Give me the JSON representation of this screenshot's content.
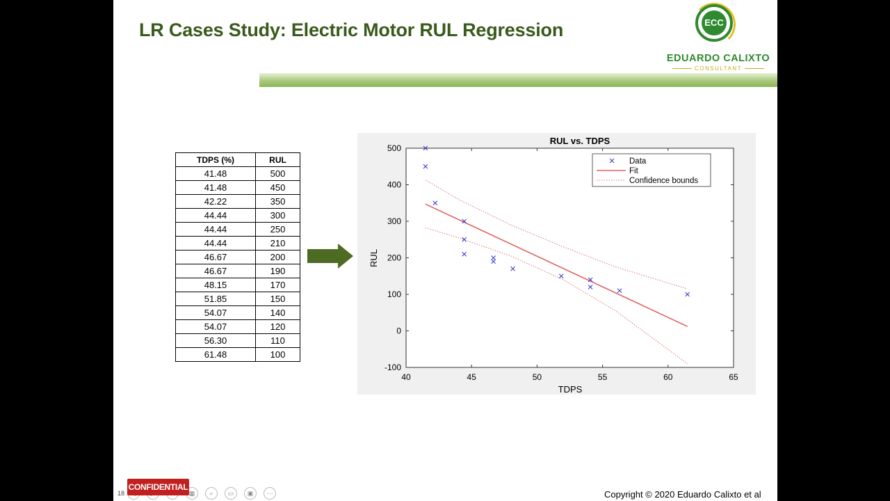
{
  "slide": {
    "title": "LR Cases Study: Electric Motor RUL Regression",
    "logo": {
      "initials": "ECC",
      "name": "EDUARDO CALIXTO",
      "subtitle": "CONSULTANT"
    },
    "confidential_label": "CONFIDENTIAL",
    "page_number": "18",
    "copyright": "Copyright © 2020 Eduardo Calixto et al",
    "colors": {
      "title": "#3a5a1c",
      "arrow": "#4e6b24",
      "brand": "#2f8a2f",
      "confidential": "#c21f1f"
    },
    "controls": [
      "prev-icon",
      "next-icon",
      "pen-icon",
      "slides-icon",
      "zoom-icon",
      "subtitles-icon",
      "video-icon",
      "more-icon"
    ]
  },
  "table": {
    "headers": [
      "TDPS (%)",
      "RUL"
    ],
    "rows": [
      [
        "41.48",
        "500"
      ],
      [
        "41.48",
        "450"
      ],
      [
        "42.22",
        "350"
      ],
      [
        "44.44",
        "300"
      ],
      [
        "44.44",
        "250"
      ],
      [
        "44.44",
        "210"
      ],
      [
        "46.67",
        "200"
      ],
      [
        "46.67",
        "190"
      ],
      [
        "48.15",
        "170"
      ],
      [
        "51.85",
        "150"
      ],
      [
        "54.07",
        "140"
      ],
      [
        "54.07",
        "120"
      ],
      [
        "56.30",
        "110"
      ],
      [
        "61.48",
        "100"
      ]
    ]
  },
  "chart_data": {
    "type": "scatter",
    "title": "RUL vs. TDPS",
    "xlabel": "TDPS",
    "ylabel": "RUL",
    "xlim": [
      40,
      65
    ],
    "ylim": [
      -100,
      500
    ],
    "xticks": [
      40,
      45,
      50,
      55,
      60,
      65
    ],
    "yticks": [
      -100,
      0,
      100,
      200,
      300,
      400,
      500
    ],
    "legend": {
      "position": "top-right",
      "entries": [
        "Data",
        "Fit",
        "Confidence bounds"
      ]
    },
    "series": [
      {
        "name": "Data",
        "marker": "x",
        "color": "#3333cc",
        "x": [
          41.48,
          41.48,
          42.22,
          44.44,
          44.44,
          44.44,
          46.67,
          46.67,
          48.15,
          51.85,
          54.07,
          54.07,
          56.3,
          61.48
        ],
        "y": [
          500,
          450,
          350,
          300,
          250,
          210,
          200,
          190,
          170,
          150,
          140,
          120,
          110,
          100
        ]
      },
      {
        "name": "Fit",
        "color": "#e06060",
        "x": [
          41.48,
          61.48
        ],
        "y": [
          347,
          12
        ]
      },
      {
        "name": "Confidence bounds",
        "color": "#e07070",
        "upper": {
          "x": [
            41.48,
            44,
            48,
            52,
            56,
            61.48
          ],
          "y": [
            413,
            360,
            290,
            230,
            175,
            115
          ]
        },
        "lower": {
          "x": [
            41.48,
            44,
            48,
            52,
            56,
            61.48
          ],
          "y": [
            282,
            255,
            205,
            140,
            55,
            -90
          ]
        }
      }
    ]
  }
}
